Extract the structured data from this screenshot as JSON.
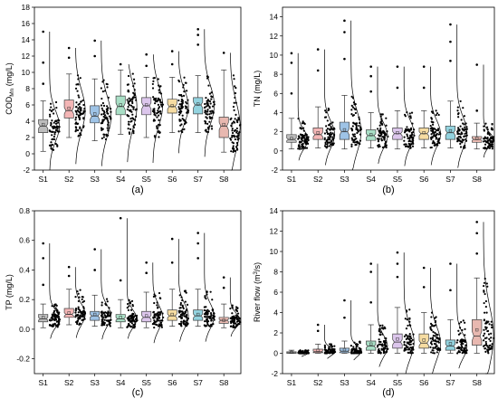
{
  "chart_data": [
    {
      "type": "box",
      "panel_label": "(a)",
      "ylabel": {
        "prefix": "COD",
        "subscript": "Mn",
        "suffix": " (mg/L)"
      },
      "xlabel": "",
      "ylim": [
        -2,
        18
      ],
      "yticks": [
        -2,
        0,
        2,
        4,
        6,
        8,
        10,
        12,
        14,
        16,
        18
      ],
      "categories": [
        "S1",
        "S2",
        "S3",
        "S4",
        "S5",
        "S6",
        "S7",
        "S8"
      ],
      "colors": [
        "#bdbdbd",
        "#f4b6b6",
        "#9ec3e6",
        "#a9dfc6",
        "#dcc6ec",
        "#f6dca2",
        "#93d3df",
        "#e8b8b0"
      ],
      "boxes": [
        {
          "min": 0.3,
          "q1": 2.6,
          "median": 3.4,
          "q3": 4.2,
          "max": 6.5,
          "mean": 3.6,
          "outliers": [
            8.6,
            11.2,
            15.0
          ]
        },
        {
          "min": 2.0,
          "q1": 4.4,
          "median": 5.3,
          "q3": 6.6,
          "max": 9.8,
          "mean": 5.6,
          "outliers": [
            11.8,
            13.0
          ]
        },
        {
          "min": 1.6,
          "q1": 3.8,
          "median": 4.6,
          "q3": 5.9,
          "max": 9.2,
          "mean": 4.9,
          "outliers": [
            12.0,
            13.9
          ]
        },
        {
          "min": 2.4,
          "q1": 4.8,
          "median": 5.8,
          "q3": 7.1,
          "max": 10.3,
          "mean": 6.0,
          "outliers": [
            11.0
          ]
        },
        {
          "min": 2.0,
          "q1": 4.8,
          "median": 5.9,
          "q3": 6.9,
          "max": 9.4,
          "mean": 6.0,
          "outliers": [
            10.8,
            12.2
          ]
        },
        {
          "min": 2.6,
          "q1": 5.0,
          "median": 5.8,
          "q3": 6.7,
          "max": 9.4,
          "mean": 5.9,
          "outliers": [
            11.0,
            12.6
          ]
        },
        {
          "min": 2.6,
          "q1": 4.9,
          "median": 6.0,
          "q3": 6.9,
          "max": 9.6,
          "mean": 6.1,
          "outliers": [
            13.4,
            14.6,
            15.3
          ]
        },
        {
          "min": 0.2,
          "q1": 2.0,
          "median": 3.4,
          "q3": 4.5,
          "max": 10.3,
          "mean": 3.6,
          "outliers": [
            12.4
          ]
        }
      ]
    },
    {
      "type": "box",
      "panel_label": "(b)",
      "ylabel": {
        "prefix": "TN (mg/L)",
        "subscript": "",
        "suffix": ""
      },
      "xlabel": "",
      "ylim": [
        -2,
        15
      ],
      "yticks": [
        -2,
        0,
        2,
        4,
        6,
        8,
        10,
        12,
        14
      ],
      "categories": [
        "S1",
        "S2",
        "S3",
        "S4",
        "S5",
        "S6",
        "S7",
        "S8"
      ],
      "colors": [
        "#bdbdbd",
        "#f4b6b6",
        "#9ec3e6",
        "#a9dfc6",
        "#dcc6ec",
        "#f6dca2",
        "#93d3df",
        "#e8b8b0"
      ],
      "boxes": [
        {
          "min": 0.2,
          "q1": 0.9,
          "median": 1.2,
          "q3": 1.7,
          "max": 3.4,
          "mean": 1.3,
          "outliers": [
            6.0,
            9.2,
            10.2
          ]
        },
        {
          "min": 0.3,
          "q1": 1.2,
          "median": 1.7,
          "q3": 2.4,
          "max": 4.6,
          "mean": 1.9,
          "outliers": [
            8.4,
            10.6
          ]
        },
        {
          "min": 0.2,
          "q1": 1.2,
          "median": 2.0,
          "q3": 3.0,
          "max": 5.8,
          "mean": 2.2,
          "outliers": [
            9.6,
            12.4,
            13.6
          ]
        },
        {
          "min": 0.3,
          "q1": 1.1,
          "median": 1.6,
          "q3": 2.2,
          "max": 4.0,
          "mean": 1.7,
          "outliers": [
            6.2,
            7.8,
            8.8
          ]
        },
        {
          "min": 0.2,
          "q1": 1.2,
          "median": 1.8,
          "q3": 2.4,
          "max": 4.2,
          "mean": 1.9,
          "outliers": [
            6.6,
            8.8
          ]
        },
        {
          "min": 0.3,
          "q1": 1.2,
          "median": 1.8,
          "q3": 2.4,
          "max": 4.2,
          "mean": 1.9,
          "outliers": [
            6.6,
            8.8
          ]
        },
        {
          "min": 0.3,
          "q1": 1.2,
          "median": 1.9,
          "q3": 2.6,
          "max": 5.2,
          "mean": 2.1,
          "outliers": [
            9.4,
            11.4,
            13.2
          ]
        },
        {
          "min": 0.2,
          "q1": 0.9,
          "median": 1.2,
          "q3": 1.5,
          "max": 2.9,
          "mean": 1.3,
          "outliers": [
            4.2,
            9.0
          ]
        }
      ]
    },
    {
      "type": "box",
      "panel_label": "(c)",
      "ylabel": {
        "prefix": "TP (mg/L)",
        "subscript": "",
        "suffix": ""
      },
      "xlabel": "",
      "ylim": [
        -0.3,
        0.8
      ],
      "yticks": [
        -0.2,
        0.0,
        0.2,
        0.4,
        0.6,
        0.8
      ],
      "tick_decimals": 1,
      "categories": [
        "S1",
        "S2",
        "S3",
        "S4",
        "S5",
        "S6",
        "S7",
        "S8"
      ],
      "colors": [
        "#bdbdbd",
        "#f4b6b6",
        "#9ec3e6",
        "#a9dfc6",
        "#dcc6ec",
        "#f6dca2",
        "#93d3df",
        "#e8b8b0"
      ],
      "boxes": [
        {
          "min": 0.01,
          "q1": 0.05,
          "median": 0.07,
          "q3": 0.1,
          "max": 0.17,
          "mean": 0.08,
          "outliers": [
            0.3,
            0.48,
            0.58
          ]
        },
        {
          "min": 0.03,
          "q1": 0.08,
          "median": 0.1,
          "q3": 0.14,
          "max": 0.27,
          "mean": 0.11,
          "outliers": [
            0.36,
            0.42
          ]
        },
        {
          "min": 0.02,
          "q1": 0.06,
          "median": 0.09,
          "q3": 0.12,
          "max": 0.23,
          "mean": 0.1,
          "outliers": [
            0.4,
            0.54
          ]
        },
        {
          "min": 0.01,
          "q1": 0.05,
          "median": 0.07,
          "q3": 0.1,
          "max": 0.2,
          "mean": 0.08,
          "outliers": [
            0.33,
            0.75
          ]
        },
        {
          "min": 0.01,
          "q1": 0.05,
          "median": 0.08,
          "q3": 0.12,
          "max": 0.25,
          "mean": 0.09,
          "outliers": [
            0.38,
            0.45
          ]
        },
        {
          "min": 0.02,
          "q1": 0.06,
          "median": 0.09,
          "q3": 0.13,
          "max": 0.27,
          "mean": 0.1,
          "outliers": [
            0.45,
            0.61
          ]
        },
        {
          "min": 0.02,
          "q1": 0.06,
          "median": 0.09,
          "q3": 0.13,
          "max": 0.27,
          "mean": 0.1,
          "outliers": [
            0.48,
            0.58,
            0.65
          ]
        },
        {
          "min": 0.01,
          "q1": 0.04,
          "median": 0.06,
          "q3": 0.08,
          "max": 0.17,
          "mean": 0.06,
          "outliers": [
            0.28,
            0.35
          ]
        }
      ]
    },
    {
      "type": "box",
      "panel_label": "(d)",
      "ylabel": {
        "prefix": "River flow (m",
        "superscript": "3",
        "suffix": "/s)"
      },
      "xlabel": "",
      "ylim": [
        -2,
        14
      ],
      "yticks": [
        -2,
        0,
        2,
        4,
        6,
        8,
        10,
        12,
        14
      ],
      "categories": [
        "S1",
        "S2",
        "S3",
        "S4",
        "S5",
        "S6",
        "S7",
        "S8"
      ],
      "colors": [
        "#bdbdbd",
        "#f4b6b6",
        "#9ec3e6",
        "#a9dfc6",
        "#dcc6ec",
        "#f6dca2",
        "#93d3df",
        "#e8b8b0"
      ],
      "boxes": [
        {
          "min": 0.0,
          "q1": 0.0,
          "median": 0.05,
          "q3": 0.15,
          "max": 0.3,
          "mean": 0.1,
          "outliers": []
        },
        {
          "min": 0.0,
          "q1": 0.05,
          "median": 0.15,
          "q3": 0.4,
          "max": 0.9,
          "mean": 0.3,
          "outliers": [
            2.2,
            2.8
          ]
        },
        {
          "min": 0.0,
          "q1": 0.05,
          "median": 0.2,
          "q3": 0.5,
          "max": 1.2,
          "mean": 0.35,
          "outliers": [
            3.5,
            5.2
          ]
        },
        {
          "min": 0.0,
          "q1": 0.3,
          "median": 0.7,
          "q3": 1.2,
          "max": 2.8,
          "mean": 0.9,
          "outliers": [
            5.0,
            8.0,
            8.8
          ]
        },
        {
          "min": 0.0,
          "q1": 0.5,
          "median": 1.1,
          "q3": 1.9,
          "max": 4.5,
          "mean": 1.4,
          "outliers": [
            7.5,
            8.8,
            9.9
          ]
        },
        {
          "min": 0.0,
          "q1": 0.5,
          "median": 1.0,
          "q3": 1.9,
          "max": 4.0,
          "mean": 1.3,
          "outliers": [
            6.5,
            8.4
          ]
        },
        {
          "min": 0.0,
          "q1": 0.3,
          "median": 0.7,
          "q3": 1.3,
          "max": 3.3,
          "mean": 0.95,
          "outliers": [
            6.2,
            8.8
          ]
        },
        {
          "min": 0.0,
          "q1": 0.8,
          "median": 1.7,
          "q3": 3.3,
          "max": 7.4,
          "mean": 2.3,
          "outliers": [
            9.8,
            11.8,
            12.9
          ]
        }
      ]
    }
  ]
}
